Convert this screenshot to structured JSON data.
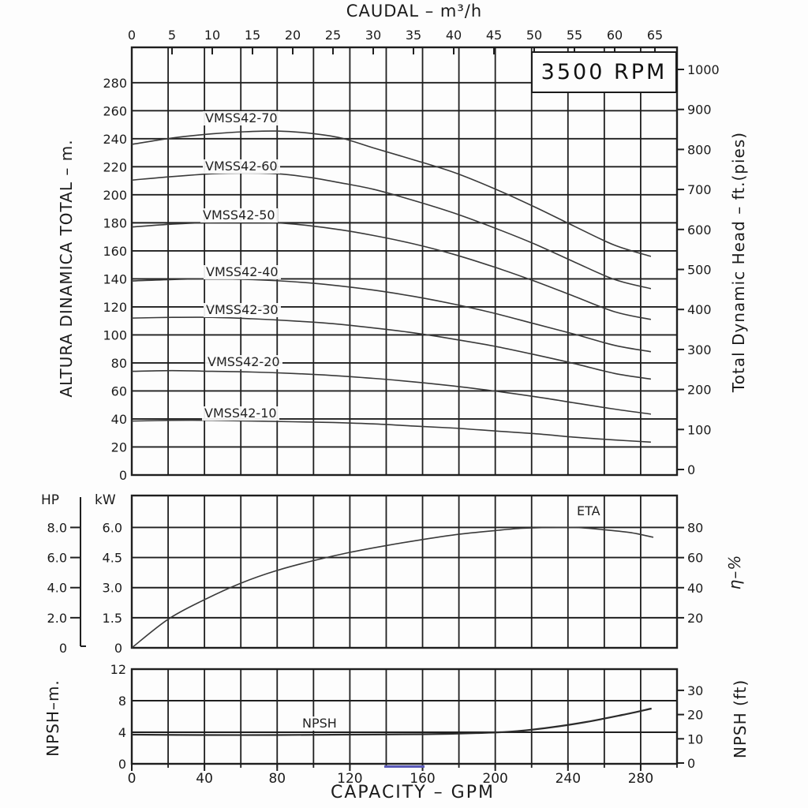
{
  "window": {
    "background": "#fdfdfd",
    "line_color": "#1f1f1f",
    "curve_color": "#3a3a3a",
    "blue_mark_color": "#5a5ab8"
  },
  "rpm_box": {
    "label": "3500 RPM"
  },
  "axes_labels": {
    "caudal": "CAUDAL  –  m³/h",
    "altura": "ALTURA DINAMICA TOTAL  –  m.",
    "tdh": "Total Dynamic Head  –  ft.(pies)",
    "hp": "HP",
    "kw": "kW",
    "eta_pct": "η–%",
    "npsh_m": "NPSH–m.",
    "npsh_ft": "NPSH  (ft)",
    "capacity": "CAPACITY  –  GPM"
  },
  "chart_data": [
    {
      "type": "line",
      "panel": "head-capacity",
      "title": "3500 RPM",
      "x_axis_top": {
        "label": "CAUDAL – m³/h",
        "units": "m³/h",
        "ticks": [
          [
            0,
            "0"
          ],
          [
            5,
            "5"
          ],
          [
            10,
            "10"
          ],
          [
            15,
            "15"
          ],
          [
            20,
            "20"
          ],
          [
            25,
            "25"
          ],
          [
            30,
            "30"
          ],
          [
            35,
            "35"
          ],
          [
            40,
            "40"
          ],
          [
            45,
            "45"
          ],
          [
            50,
            "50"
          ],
          [
            55,
            "55"
          ],
          [
            60,
            "60"
          ],
          [
            65,
            "65"
          ]
        ]
      },
      "x_grid_gpm": {
        "min": 0,
        "max": 300,
        "step": 20
      },
      "y_axis_left": {
        "label": "ALTURA DINAMICA TOTAL – m.",
        "units": "m",
        "range": [
          0,
          305
        ],
        "ticks": [
          [
            280,
            "280"
          ],
          [
            260,
            "260"
          ],
          [
            240,
            "240"
          ],
          [
            220,
            "220"
          ],
          [
            200,
            "200"
          ],
          [
            180,
            "180"
          ],
          [
            160,
            "160"
          ],
          [
            140,
            "140"
          ],
          [
            120,
            "120"
          ],
          [
            100,
            "100"
          ],
          [
            80,
            "80"
          ],
          [
            60,
            "60"
          ],
          [
            40,
            "40"
          ],
          [
            20,
            "20"
          ],
          [
            0,
            "0"
          ]
        ]
      },
      "y_axis_right": {
        "label": "Total Dynamic Head – ft.(pies)",
        "units": "ft",
        "ticks": [
          [
            1000,
            "1000"
          ],
          [
            900,
            "900"
          ],
          [
            800,
            "800"
          ],
          [
            700,
            "700"
          ],
          [
            600,
            "600"
          ],
          [
            500,
            "500"
          ],
          [
            400,
            "400"
          ],
          [
            300,
            "300"
          ],
          [
            200,
            "200"
          ],
          [
            100,
            "100"
          ],
          [
            0,
            "0"
          ]
        ]
      },
      "grid": true,
      "series": [
        {
          "name": "VMSS42-70",
          "x_units": "m3h",
          "y_units": "m",
          "points": [
            [
              0,
              236
            ],
            [
              5,
              240.5
            ],
            [
              10,
              243.5
            ],
            [
              14,
              245
            ],
            [
              18,
              245.5
            ],
            [
              22,
              244
            ],
            [
              26,
              240.5
            ],
            [
              30,
              233.5
            ],
            [
              35,
              225
            ],
            [
              40,
              216
            ],
            [
              45,
              204.5
            ],
            [
              50,
              191.5
            ],
            [
              55,
              177.5
            ],
            [
              60,
              164
            ],
            [
              64.5,
              156
            ]
          ]
        },
        {
          "name": "VMSS42-60",
          "x_units": "m3h",
          "y_units": "m",
          "points": [
            [
              0,
              210.5
            ],
            [
              5,
              213
            ],
            [
              10,
              215
            ],
            [
              14,
              215.5
            ],
            [
              18,
              215
            ],
            [
              22,
              212.5
            ],
            [
              26,
              208.5
            ],
            [
              30,
              204
            ],
            [
              35,
              196
            ],
            [
              40,
              187
            ],
            [
              45,
              176.5
            ],
            [
              50,
              165
            ],
            [
              55,
              152
            ],
            [
              60,
              139.5
            ],
            [
              64.5,
              133
            ]
          ]
        },
        {
          "name": "VMSS42-50",
          "x_units": "m3h",
          "y_units": "m",
          "points": [
            [
              0,
              177
            ],
            [
              5,
              179
            ],
            [
              9,
              180
            ],
            [
              14,
              180.5
            ],
            [
              18,
              180
            ],
            [
              22,
              178
            ],
            [
              26,
              175
            ],
            [
              30,
              171
            ],
            [
              35,
              165
            ],
            [
              40,
              157.5
            ],
            [
              45,
              148.5
            ],
            [
              50,
              138.5
            ],
            [
              55,
              127.5
            ],
            [
              60,
              116.5
            ],
            [
              64.5,
              111
            ]
          ]
        },
        {
          "name": "VMSS42-40",
          "x_units": "m3h",
          "y_units": "m",
          "points": [
            [
              0,
              138.5
            ],
            [
              5,
              139.5
            ],
            [
              10,
              140
            ],
            [
              15,
              139.5
            ],
            [
              20,
              138
            ],
            [
              25,
              135.5
            ],
            [
              30,
              132
            ],
            [
              35,
              127.5
            ],
            [
              40,
              122
            ],
            [
              45,
              115.5
            ],
            [
              50,
              108
            ],
            [
              55,
              100.5
            ],
            [
              60,
              92.5
            ],
            [
              64.5,
              88
            ]
          ]
        },
        {
          "name": "VMSS42-30",
          "x_units": "m3h",
          "y_units": "m",
          "points": [
            [
              0,
              112
            ],
            [
              5,
              112.5
            ],
            [
              10,
              112.5
            ],
            [
              15,
              111.5
            ],
            [
              20,
              110
            ],
            [
              25,
              108
            ],
            [
              30,
              105
            ],
            [
              35,
              101.5
            ],
            [
              40,
              97
            ],
            [
              45,
              92
            ],
            [
              50,
              86
            ],
            [
              55,
              79.5
            ],
            [
              60,
              72.5
            ],
            [
              64.5,
              68.5
            ]
          ]
        },
        {
          "name": "VMSS42-20",
          "x_units": "m3h",
          "y_units": "m",
          "points": [
            [
              0,
              74
            ],
            [
              5,
              74.5
            ],
            [
              10,
              74
            ],
            [
              15,
              73.5
            ],
            [
              20,
              72.5
            ],
            [
              25,
              71
            ],
            [
              30,
              69
            ],
            [
              35,
              66.5
            ],
            [
              40,
              63.5
            ],
            [
              45,
              60
            ],
            [
              50,
              56
            ],
            [
              55,
              51.5
            ],
            [
              60,
              47
            ],
            [
              64.5,
              43.5
            ]
          ]
        },
        {
          "name": "VMSS42-10",
          "x_units": "m3h",
          "y_units": "m",
          "points": [
            [
              0,
              38.5
            ],
            [
              5,
              39
            ],
            [
              10,
              39
            ],
            [
              15,
              38.5
            ],
            [
              20,
              38
            ],
            [
              25,
              37.5
            ],
            [
              30,
              36.5
            ],
            [
              35,
              35
            ],
            [
              40,
              33.5
            ],
            [
              45,
              31.5
            ],
            [
              50,
              29.5
            ],
            [
              55,
              27
            ],
            [
              60,
              25
            ],
            [
              64.5,
              23.5
            ]
          ]
        }
      ]
    },
    {
      "type": "line",
      "panel": "power-efficiency",
      "y_axis_left_hp": {
        "label": "HP",
        "ticks": [
          [
            8,
            "8.0"
          ],
          [
            6,
            "6.0"
          ],
          [
            4,
            "4.0"
          ],
          [
            2,
            "2.0"
          ],
          [
            0,
            "0"
          ]
        ]
      },
      "y_axis_left_kw": {
        "label": "kW",
        "ticks": [
          [
            6,
            "6.0"
          ],
          [
            4.5,
            "4.5"
          ],
          [
            3,
            "3.0"
          ],
          [
            1.5,
            "1.5"
          ],
          [
            0,
            "0"
          ]
        ]
      },
      "y_axis_right": {
        "label": "η–%",
        "units": "%",
        "ticks": [
          [
            80,
            "80"
          ],
          [
            60,
            "60"
          ],
          [
            40,
            "40"
          ],
          [
            20,
            "20"
          ]
        ]
      },
      "x_grid_gpm": {
        "min": 0,
        "max": 300,
        "step": 20
      },
      "grid": true,
      "series": [
        {
          "name": "ETA",
          "x_units": "gpm",
          "y_units": "%",
          "points": [
            [
              0,
              0
            ],
            [
              20,
              19
            ],
            [
              40,
              32
            ],
            [
              60,
              43
            ],
            [
              80,
              51.5
            ],
            [
              100,
              58
            ],
            [
              120,
              63.5
            ],
            [
              140,
              68
            ],
            [
              160,
              72
            ],
            [
              180,
              75.5
            ],
            [
              200,
              78
            ],
            [
              215,
              79.5
            ],
            [
              230,
              80
            ],
            [
              245,
              80
            ],
            [
              260,
              78.5
            ],
            [
              275,
              76.5
            ],
            [
              287,
              73.5
            ]
          ]
        }
      ]
    },
    {
      "type": "line",
      "panel": "npsh",
      "x_axis_bottom": {
        "label": "CAPACITY – GPM",
        "units": "GPM",
        "ticks": [
          [
            0,
            "0"
          ],
          [
            40,
            "40"
          ],
          [
            80,
            "80"
          ],
          [
            120,
            "120"
          ],
          [
            160,
            "160"
          ],
          [
            200,
            "200"
          ],
          [
            240,
            "240"
          ],
          [
            280,
            "280"
          ]
        ]
      },
      "y_axis_left": {
        "label": "NPSH-m.",
        "units": "m",
        "ticks": [
          [
            12,
            "12"
          ],
          [
            8,
            "8"
          ],
          [
            4,
            "4"
          ],
          [
            0,
            "0"
          ]
        ]
      },
      "y_axis_right": {
        "label": "NPSH (ft)",
        "units": "ft",
        "ticks": [
          [
            30,
            "30"
          ],
          [
            20,
            "20"
          ],
          [
            10,
            "10"
          ],
          [
            0,
            "0"
          ]
        ]
      },
      "x_grid_gpm": {
        "min": 0,
        "max": 300,
        "step": 20
      },
      "grid": true,
      "series": [
        {
          "name": "NPSH",
          "x_units": "gpm",
          "y_units": "m",
          "points": [
            [
              0,
              3.7
            ],
            [
              40,
              3.65
            ],
            [
              80,
              3.65
            ],
            [
              120,
              3.7
            ],
            [
              160,
              3.75
            ],
            [
              190,
              3.9
            ],
            [
              210,
              4.1
            ],
            [
              230,
              4.6
            ],
            [
              250,
              5.3
            ],
            [
              270,
              6.2
            ],
            [
              286,
              7.0
            ]
          ]
        }
      ]
    }
  ]
}
